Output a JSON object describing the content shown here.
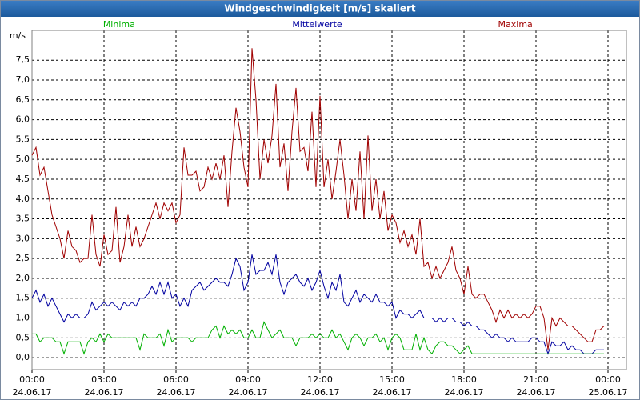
{
  "chart_data": {
    "type": "line",
    "title": "Windgeschwindigkeit [m/s] skaliert",
    "y_label": "m/s",
    "xlim": [
      0,
      1486
    ],
    "ylim": [
      -0.3,
      8.25
    ],
    "grid": true,
    "legend": "top",
    "xticks": [
      {
        "value": 0,
        "label": "00:00"
      },
      {
        "value": 180,
        "label": "03:00"
      },
      {
        "value": 360,
        "label": "06:00"
      },
      {
        "value": 540,
        "label": "09:00"
      },
      {
        "value": 720,
        "label": "12:00"
      },
      {
        "value": 900,
        "label": "15:00"
      },
      {
        "value": 1080,
        "label": "18:00"
      },
      {
        "value": 1260,
        "label": "21:00"
      },
      {
        "value": 1440,
        "label": "00:00"
      }
    ],
    "xtick_dates": [
      "24.06.17",
      "24.06.17",
      "24.06.17",
      "24.06.17",
      "24.06.17",
      "24.06.17",
      "24.06.17",
      "24.06.17",
      "25.06.17"
    ],
    "yticks": [
      {
        "value": 0,
        "label": "0,0"
      },
      {
        "value": 0.5,
        "label": "0,5"
      },
      {
        "value": 1,
        "label": "1,0"
      },
      {
        "value": 1.5,
        "label": "1,5"
      },
      {
        "value": 2,
        "label": "2,0"
      },
      {
        "value": 2.5,
        "label": "2,5"
      },
      {
        "value": 3,
        "label": "3,0"
      },
      {
        "value": 3.5,
        "label": "3,5"
      },
      {
        "value": 4,
        "label": "4,0"
      },
      {
        "value": 4.5,
        "label": "4,5"
      },
      {
        "value": 5,
        "label": "5,0"
      },
      {
        "value": 5.5,
        "label": "5,5"
      },
      {
        "value": 6,
        "label": "6,0"
      },
      {
        "value": 6.5,
        "label": "6,5"
      },
      {
        "value": 7,
        "label": "7,0"
      },
      {
        "value": 7.5,
        "label": "7,5"
      }
    ],
    "x": [
      0,
      10,
      20,
      30,
      40,
      50,
      60,
      70,
      80,
      90,
      100,
      110,
      120,
      130,
      140,
      150,
      160,
      170,
      180,
      190,
      200,
      210,
      220,
      230,
      240,
      250,
      260,
      270,
      280,
      290,
      300,
      310,
      320,
      330,
      340,
      350,
      360,
      370,
      380,
      390,
      400,
      410,
      420,
      430,
      440,
      450,
      460,
      470,
      480,
      490,
      500,
      510,
      520,
      530,
      540,
      550,
      560,
      570,
      580,
      590,
      600,
      610,
      620,
      630,
      640,
      650,
      660,
      670,
      680,
      690,
      700,
      710,
      720,
      730,
      740,
      750,
      760,
      770,
      780,
      790,
      800,
      810,
      820,
      830,
      840,
      850,
      860,
      870,
      880,
      890,
      900,
      910,
      920,
      930,
      940,
      950,
      960,
      970,
      980,
      990,
      1000,
      1010,
      1020,
      1030,
      1040,
      1050,
      1060,
      1070,
      1080,
      1090,
      1100,
      1110,
      1120,
      1130,
      1140,
      1150,
      1160,
      1170,
      1180,
      1190,
      1200,
      1210,
      1220,
      1230,
      1240,
      1250,
      1260,
      1270,
      1280,
      1290,
      1300,
      1310,
      1320,
      1330,
      1340,
      1350,
      1360,
      1370,
      1380,
      1390,
      1400,
      1410,
      1420,
      1430
    ],
    "series": [
      {
        "name": "Minima",
        "color": "#00b000",
        "values": [
          0.6,
          0.6,
          0.4,
          0.5,
          0.5,
          0.5,
          0.4,
          0.4,
          0.1,
          0.4,
          0.4,
          0.4,
          0.4,
          0.1,
          0.4,
          0.5,
          0.4,
          0.6,
          0.4,
          0.6,
          0.5,
          0.5,
          0.5,
          0.5,
          0.5,
          0.5,
          0.5,
          0.2,
          0.6,
          0.5,
          0.5,
          0.5,
          0.6,
          0.3,
          0.7,
          0.4,
          0.5,
          0.5,
          0.5,
          0.5,
          0.4,
          0.5,
          0.5,
          0.5,
          0.5,
          0.7,
          0.8,
          0.5,
          0.8,
          0.6,
          0.7,
          0.6,
          0.7,
          0.5,
          0.5,
          0.7,
          0.5,
          0.5,
          0.9,
          0.7,
          0.5,
          0.6,
          0.7,
          0.5,
          0.5,
          0.5,
          0.3,
          0.5,
          0.5,
          0.5,
          0.6,
          0.5,
          0.6,
          0.5,
          0.5,
          0.7,
          0.5,
          0.6,
          0.4,
          0.2,
          0.5,
          0.6,
          0.5,
          0.3,
          0.5,
          0.5,
          0.6,
          0.4,
          0.5,
          0.2,
          0.5,
          0.6,
          0.5,
          0.2,
          0.2,
          0.2,
          0.6,
          0.2,
          0.5,
          0.2,
          0.1,
          0.3,
          0.4,
          0.4,
          0.3,
          0.3,
          0.2,
          0.1,
          0.2,
          0.3,
          0.1,
          0.1,
          0.1,
          0.1,
          0.1,
          0.1,
          0.1,
          0.1,
          0.1,
          0.1,
          0.1,
          0.1,
          0.1,
          0.1,
          0.1,
          0.1,
          0.1,
          0.1,
          0.1,
          0.1,
          0.1,
          0.1,
          0.1,
          0.1,
          0.1,
          0.1,
          0.1,
          0.1,
          0.1,
          0.1,
          0.1,
          0.1,
          0.1,
          0.1
        ]
      },
      {
        "name": "Mittelwerte",
        "color": "#0000a0",
        "values": [
          1.5,
          1.7,
          1.4,
          1.6,
          1.3,
          1.5,
          1.3,
          1.1,
          0.9,
          1.1,
          1.0,
          1.1,
          1.0,
          1.0,
          1.1,
          1.4,
          1.2,
          1.3,
          1.4,
          1.3,
          1.4,
          1.3,
          1.2,
          1.4,
          1.3,
          1.4,
          1.3,
          1.5,
          1.5,
          1.6,
          1.8,
          1.6,
          1.9,
          1.6,
          1.9,
          1.5,
          1.6,
          1.3,
          1.5,
          1.3,
          1.7,
          1.8,
          1.9,
          1.7,
          1.8,
          1.9,
          2.0,
          1.9,
          1.9,
          1.8,
          2.1,
          2.5,
          2.3,
          1.7,
          1.9,
          2.6,
          2.1,
          2.2,
          2.2,
          2.4,
          2.1,
          2.6,
          1.9,
          1.6,
          1.9,
          2.0,
          2.1,
          1.9,
          1.8,
          2.0,
          1.7,
          1.9,
          2.2,
          1.8,
          1.5,
          1.9,
          1.7,
          2.1,
          1.4,
          1.3,
          1.5,
          1.7,
          1.4,
          1.6,
          1.5,
          1.4,
          1.6,
          1.4,
          1.4,
          1.3,
          1.4,
          1.0,
          1.2,
          1.1,
          1.1,
          1.0,
          1.1,
          1.2,
          1.0,
          1.0,
          1.0,
          0.9,
          1.0,
          0.9,
          1.0,
          1.0,
          0.9,
          0.9,
          0.8,
          0.9,
          0.8,
          0.8,
          0.7,
          0.7,
          0.6,
          0.5,
          0.6,
          0.5,
          0.5,
          0.4,
          0.5,
          0.4,
          0.4,
          0.4,
          0.4,
          0.5,
          0.5,
          0.4,
          0.4,
          0.1,
          0.4,
          0.3,
          0.3,
          0.4,
          0.2,
          0.3,
          0.2,
          0.2,
          0.1,
          0.1,
          0.1,
          0.2,
          0.2,
          0.2
        ]
      },
      {
        "name": "Maxima",
        "color": "#a00000",
        "values": [
          5.1,
          5.3,
          4.6,
          4.8,
          4.2,
          3.6,
          3.3,
          3.0,
          2.5,
          3.2,
          2.8,
          2.7,
          2.4,
          2.5,
          2.5,
          3.6,
          2.6,
          2.3,
          3.1,
          2.6,
          2.7,
          3.8,
          2.4,
          2.8,
          3.6,
          2.8,
          3.3,
          2.8,
          3.0,
          3.3,
          3.6,
          3.9,
          3.5,
          3.9,
          3.7,
          3.9,
          3.4,
          3.6,
          5.3,
          4.6,
          4.6,
          4.7,
          4.2,
          4.3,
          4.8,
          4.5,
          4.9,
          4.5,
          5.1,
          3.8,
          5.2,
          6.3,
          5.7,
          4.8,
          4.3,
          7.8,
          6.5,
          4.5,
          5.5,
          4.9,
          5.6,
          6.9,
          4.8,
          5.4,
          4.2,
          5.7,
          6.8,
          5.2,
          5.3,
          4.7,
          6.2,
          4.3,
          6.6,
          4.3,
          5.0,
          4.0,
          4.7,
          5.5,
          4.6,
          3.5,
          4.5,
          3.7,
          5.2,
          3.5,
          5.6,
          3.7,
          4.5,
          3.5,
          4.2,
          3.2,
          3.6,
          3.4,
          2.9,
          3.2,
          2.8,
          3.1,
          2.6,
          3.5,
          2.3,
          2.4,
          2.0,
          2.3,
          2.0,
          2.2,
          2.4,
          2.8,
          2.2,
          2.0,
          1.6,
          2.3,
          1.6,
          1.5,
          1.6,
          1.6,
          1.4,
          1.2,
          0.9,
          1.2,
          1.0,
          1.2,
          1.0,
          1.1,
          1.0,
          1.1,
          1.0,
          1.1,
          1.3,
          1.3,
          1.0,
          0.2,
          1.0,
          0.8,
          1.0,
          0.9,
          0.8,
          0.8,
          0.7,
          0.6,
          0.5,
          0.4,
          0.4,
          0.7,
          0.7,
          0.8
        ]
      }
    ]
  }
}
